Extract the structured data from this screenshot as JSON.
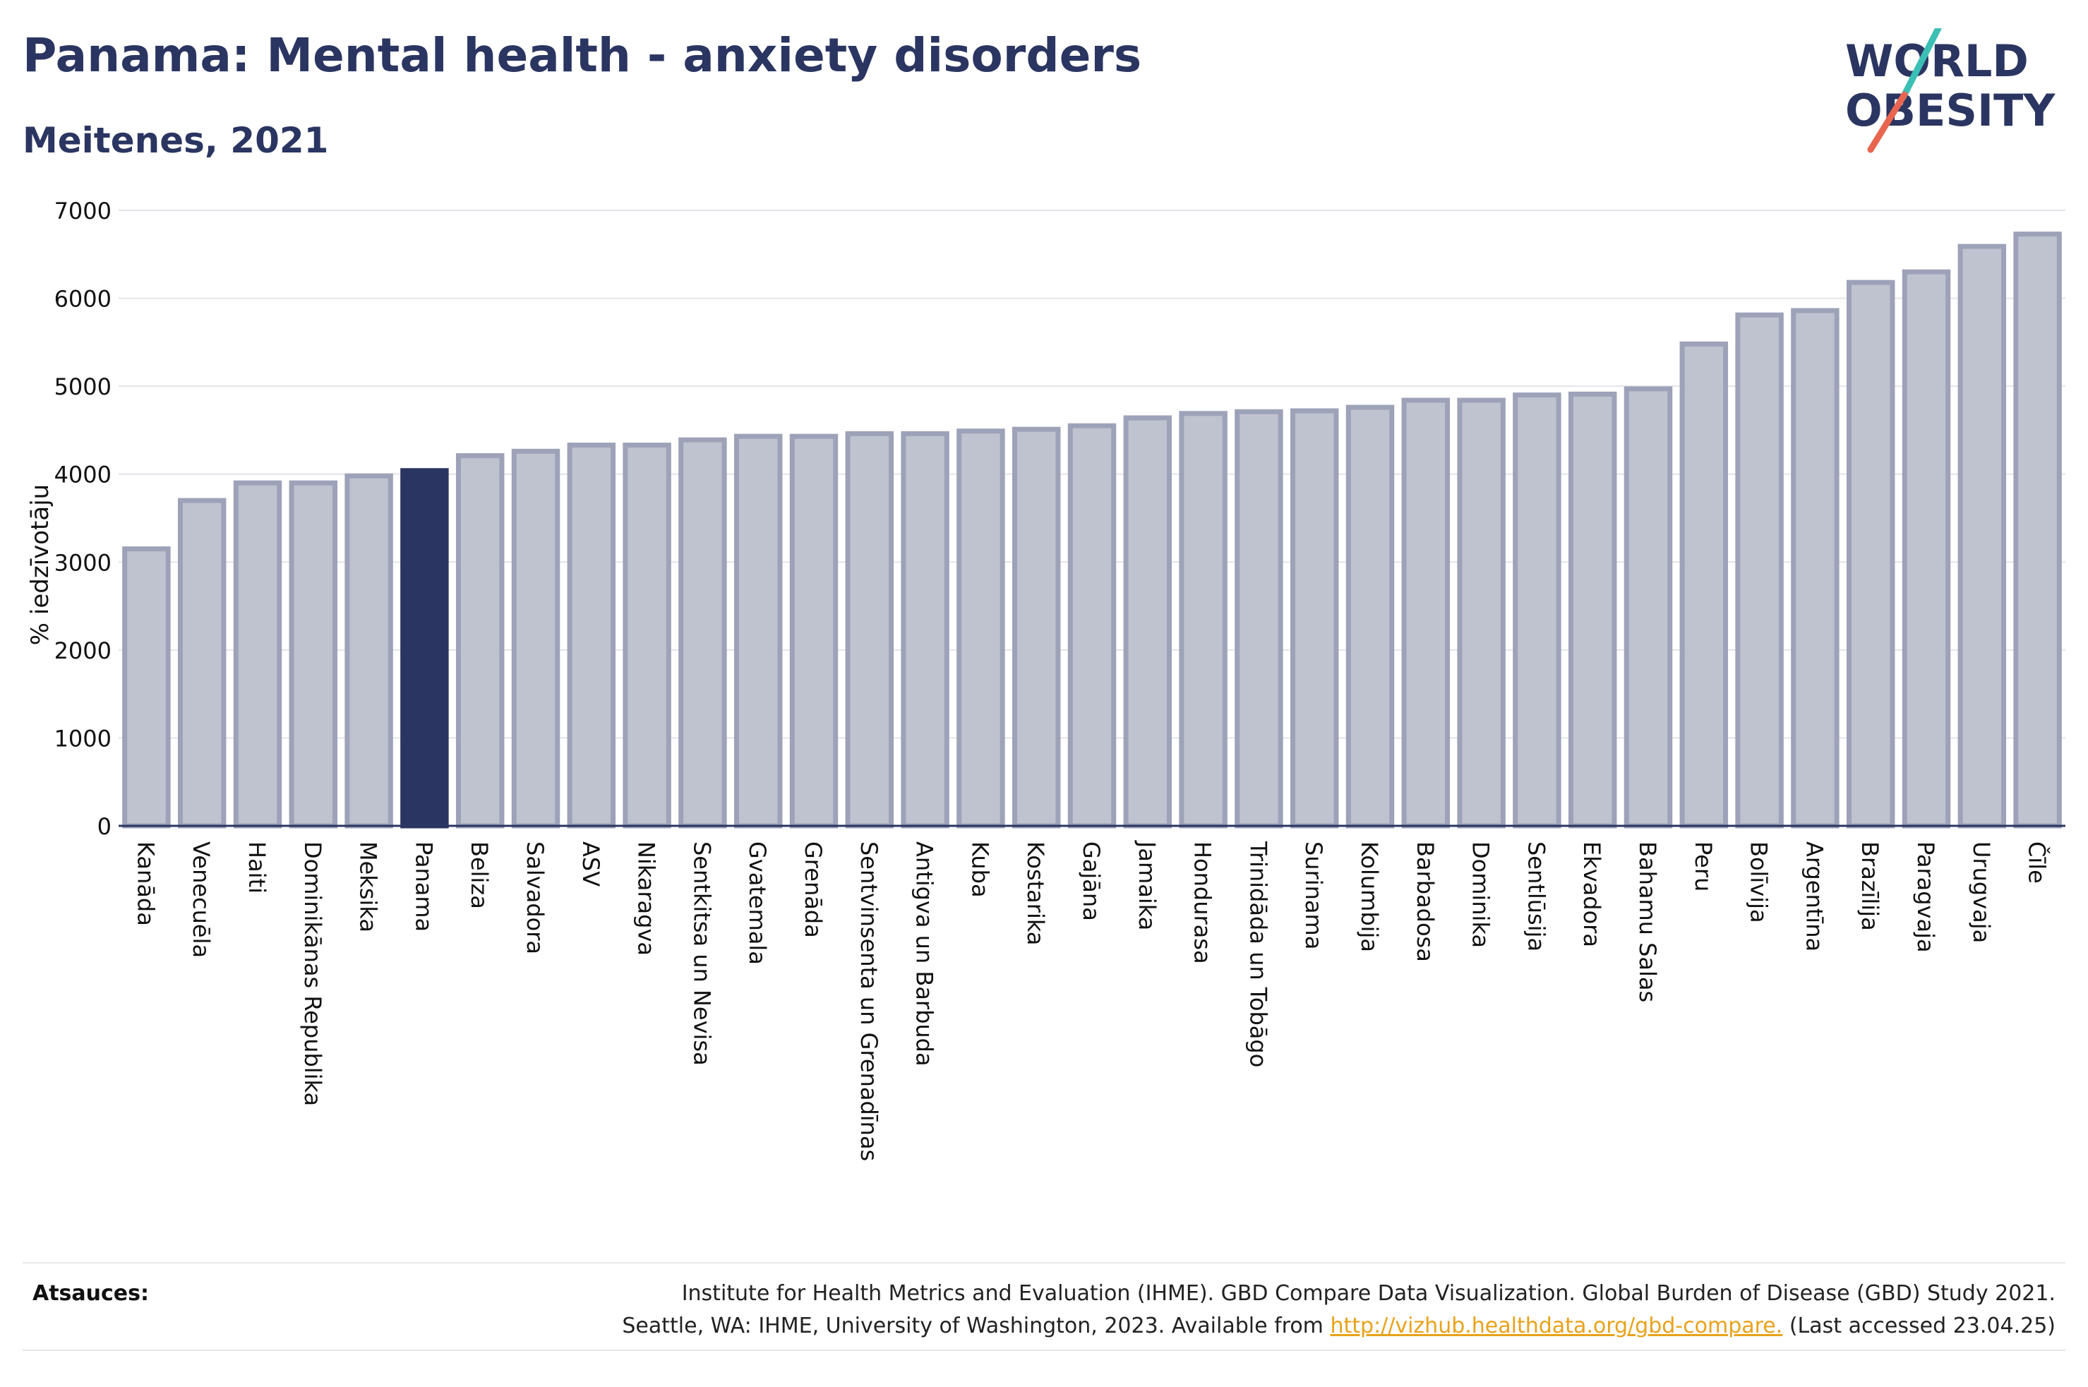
{
  "header": {
    "title": "Panama: Mental health - anxiety disorders",
    "subtitle": "Meitenes, 2021"
  },
  "logo": {
    "line1": "WORLD",
    "line2": "OBESITY",
    "slash_colors": [
      "#3bbfb5",
      "#e8664f"
    ],
    "text_color": "#2b3561"
  },
  "colors": {
    "bar": "#bfc2cf",
    "bar_border": "#9da2b8",
    "highlight": "#2b3561",
    "axis": "#2b3561",
    "grid": "#e4e4ea"
  },
  "chart_data": {
    "type": "bar",
    "ylabel": "% iedzīvotāju",
    "ylim": [
      0,
      7000
    ],
    "yticks": [
      0,
      1000,
      2000,
      3000,
      4000,
      5000,
      6000,
      7000
    ],
    "highlight": "Panama",
    "grid": true,
    "categories": [
      "Kanāda",
      "Venecuēla",
      "Haiti",
      "Dominikānas Republika",
      "Meksika",
      "Panama",
      "Beliza",
      "Salvadora",
      "ASV",
      "Nikaragva",
      "Sentkitsa un Nevisa",
      "Gvatemala",
      "Grenāda",
      "Sentvinsenta un Grenadīnas",
      "Antigva un Barbuda",
      "Kuba",
      "Kostarika",
      "Gajāna",
      "Jamaika",
      "Hondurasa",
      "Trinidāda un Tobāgo",
      "Surinama",
      "Kolumbija",
      "Barbadosa",
      "Dominika",
      "Sentlūsija",
      "Ekvadora",
      "Bahamu Salas",
      "Peru",
      "Bolīvija",
      "Argentīna",
      "Brazīlija",
      "Paragvaja",
      "Urugvaja",
      "Čīle"
    ],
    "values": [
      3150,
      3700,
      3900,
      3900,
      3980,
      4040,
      4210,
      4260,
      4330,
      4330,
      4390,
      4430,
      4430,
      4460,
      4460,
      4490,
      4510,
      4550,
      4640,
      4690,
      4710,
      4720,
      4760,
      4840,
      4840,
      4900,
      4910,
      4970,
      5480,
      5810,
      5860,
      6180,
      6300,
      6590,
      6730
    ]
  },
  "source": {
    "label": "Atsauces:",
    "line1": "Institute for Health Metrics and Evaluation (IHME). GBD Compare Data Visualization. Global Burden of Disease (GBD) Study 2021.",
    "line2_prefix": "Seattle, WA: IHME, University of Washington, 2023. Available from ",
    "link": "http://vizhub.healthdata.org/gbd-compare.",
    "line2_suffix": " (Last accessed 23.04.25)"
  }
}
